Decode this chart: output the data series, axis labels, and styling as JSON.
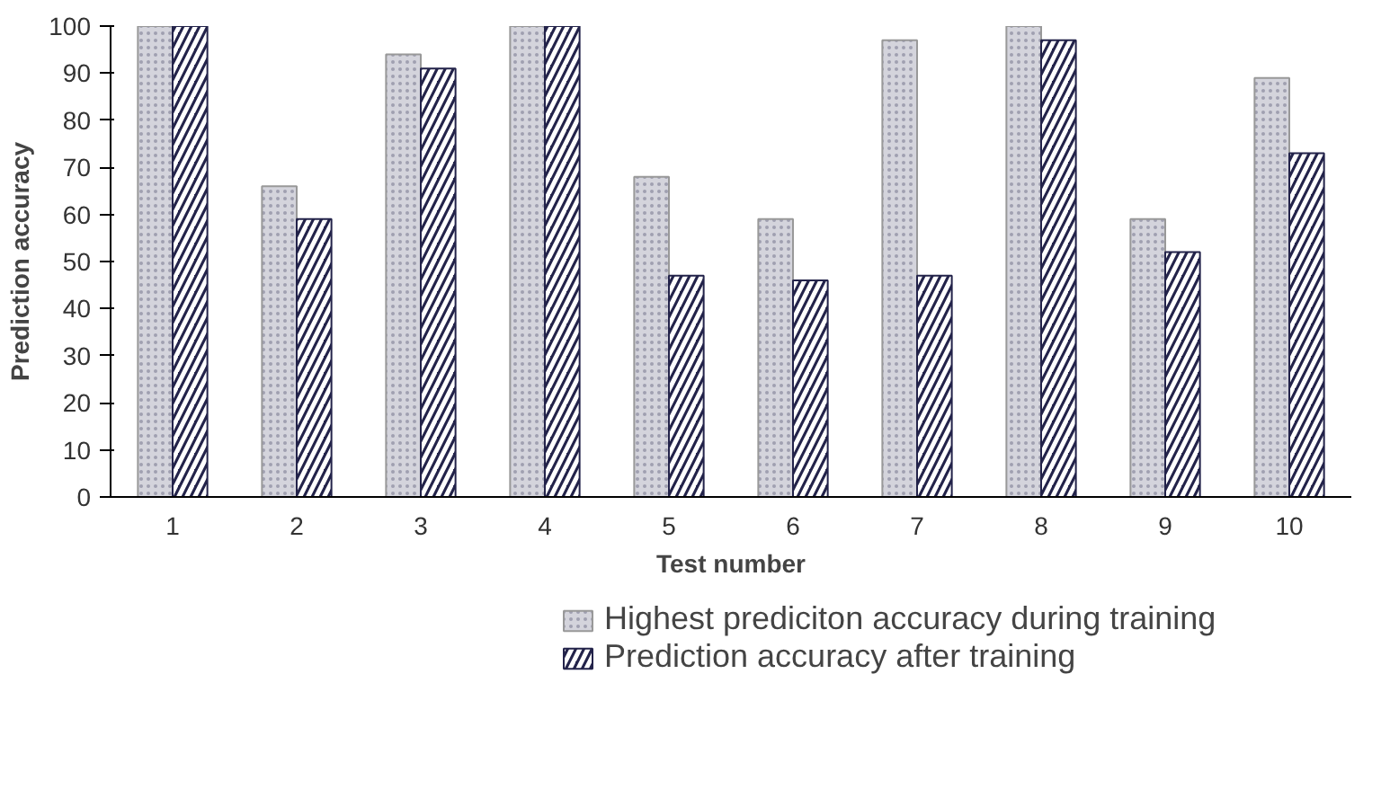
{
  "chart_data": {
    "type": "bar",
    "xlabel": "Test number",
    "ylabel": "Prediction accuracy",
    "categories": [
      "1",
      "2",
      "3",
      "4",
      "5",
      "6",
      "7",
      "8",
      "9",
      "10"
    ],
    "series": [
      {
        "name": "Highest prediciton accuracy during training",
        "color": "#d4d4dc",
        "values": [
          100,
          66,
          94,
          100,
          68,
          59,
          97,
          100,
          59,
          89
        ]
      },
      {
        "name": "Prediction accuracy after training",
        "color": "#23234a",
        "values": [
          100,
          59,
          91,
          100,
          47,
          46,
          47,
          97,
          52,
          73
        ]
      }
    ],
    "ylim": [
      0,
      100
    ],
    "yticks": [
      0,
      10,
      20,
      30,
      40,
      50,
      60,
      70,
      80,
      90,
      100
    ],
    "grid": false,
    "legend": "bottom"
  }
}
